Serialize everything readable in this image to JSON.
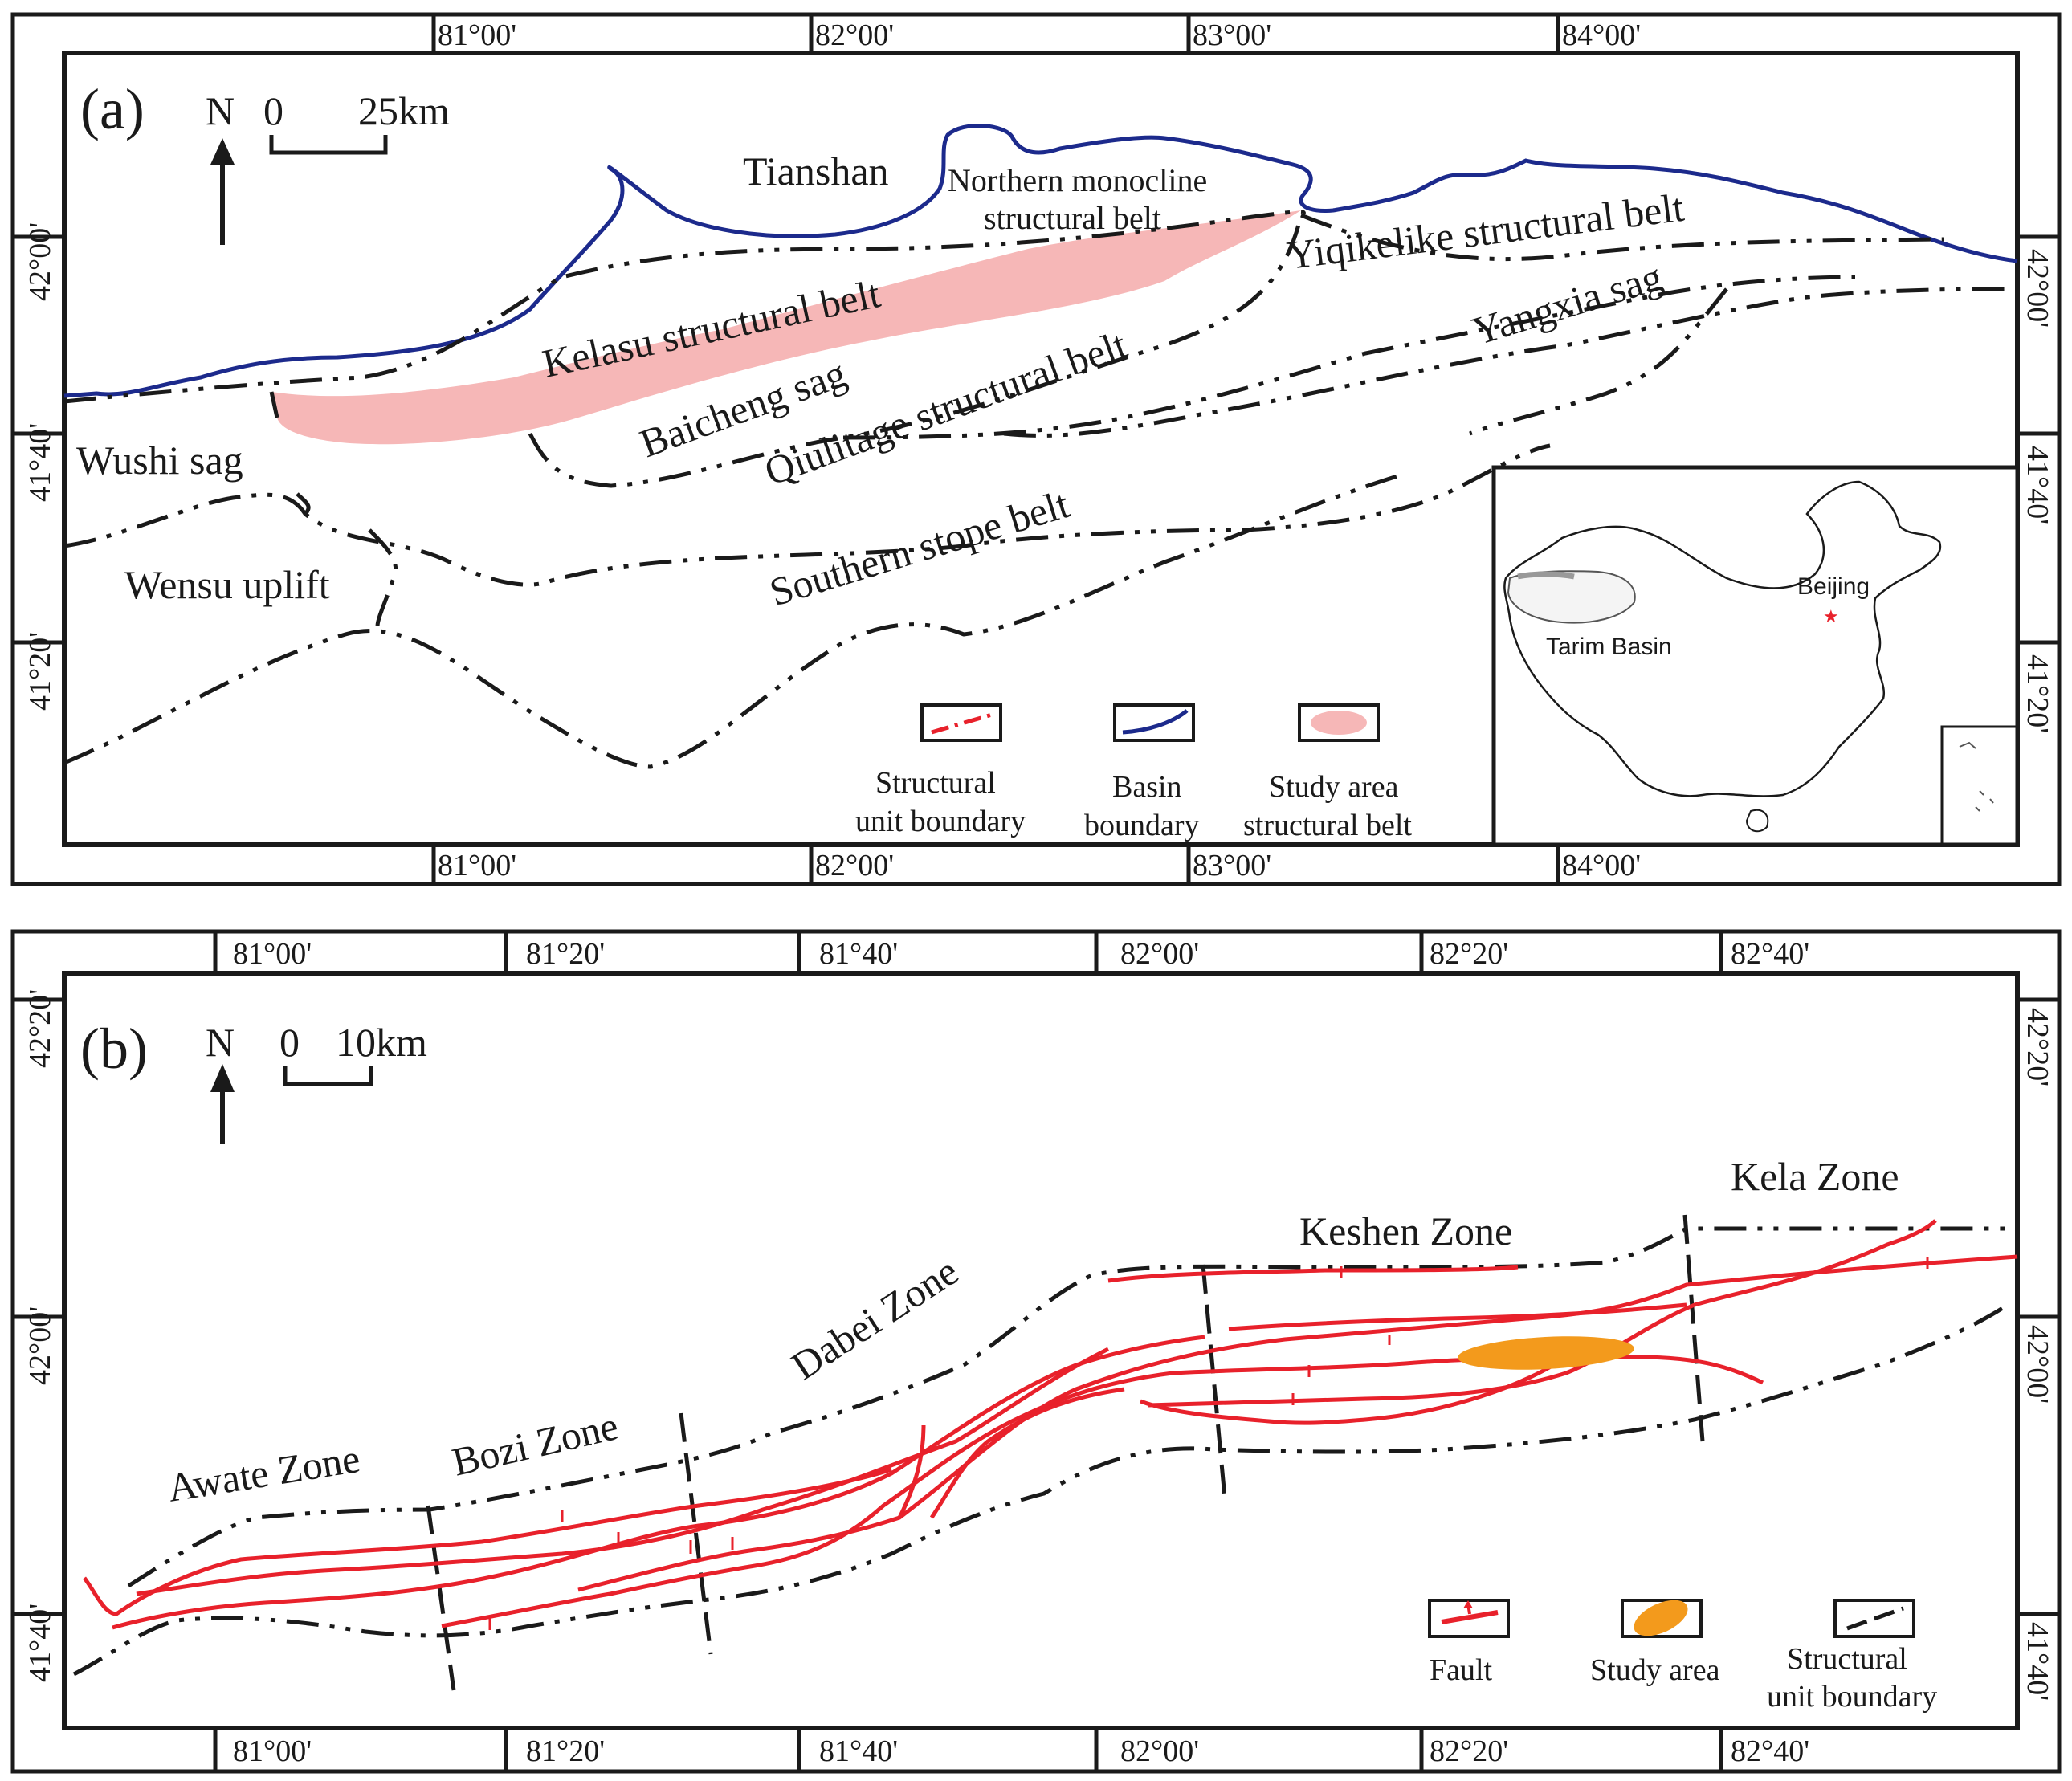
{
  "panel_a": {
    "label": "(a)",
    "north": "N",
    "scale": {
      "zero": "0",
      "length": "25km"
    },
    "lon_ticks": [
      "81°00'",
      "82°00'",
      "83°00'",
      "84°00'"
    ],
    "lat_ticks": [
      "42°00'",
      "41°40'",
      "41°20'"
    ],
    "places": {
      "tianshan": "Tianshan",
      "northern_line1": "Northern monocline",
      "northern_line2": "structural belt",
      "yiqikelike": "Yiqikelike structural belt",
      "kelasu": "Kelasu structural belt",
      "baicheng": "Baicheng sag",
      "qiulitage": "Qiulitage structural belt",
      "yangxia": "Yangxia sag",
      "wushi": "Wushi sag",
      "wensu": "Wensu uplift",
      "southern": "Southern stope belt"
    },
    "legend": {
      "structural_line1": "Structural",
      "structural_line2": "unit boundary",
      "basin_line1": "Basin",
      "basin_line2": "boundary",
      "study_line1": "Study  area",
      "study_line2": "structural  belt"
    },
    "inset": {
      "tarim": "Tarim Basin",
      "beijing": "Beijing"
    }
  },
  "panel_b": {
    "label": "(b)",
    "north": "N",
    "scale": {
      "zero": "0",
      "length": "10km"
    },
    "lon_ticks": [
      "81°00'",
      "81°20'",
      "81°40'",
      "82°00'",
      "82°20'",
      "82°40'"
    ],
    "lat_ticks": [
      "42°20'",
      "42°00'",
      "41°40'"
    ],
    "zones": {
      "awate": "Awate  Zone",
      "bozi": "Bozi  Zone",
      "dabei": "Dabei  Zone",
      "keshen": "Keshen  Zone",
      "kela": "Kela  Zone"
    },
    "legend": {
      "fault": "Fault",
      "study": "Study  area",
      "structural_line1": "Structural",
      "structural_line2": "unit boundary"
    }
  },
  "colors": {
    "basin_boundary": "#1c2a8c",
    "study_belt": "#f6b7b7",
    "fault": "#e8212b",
    "study_area": "#f39a1c",
    "boundary_dash": "#1a1a1a"
  }
}
